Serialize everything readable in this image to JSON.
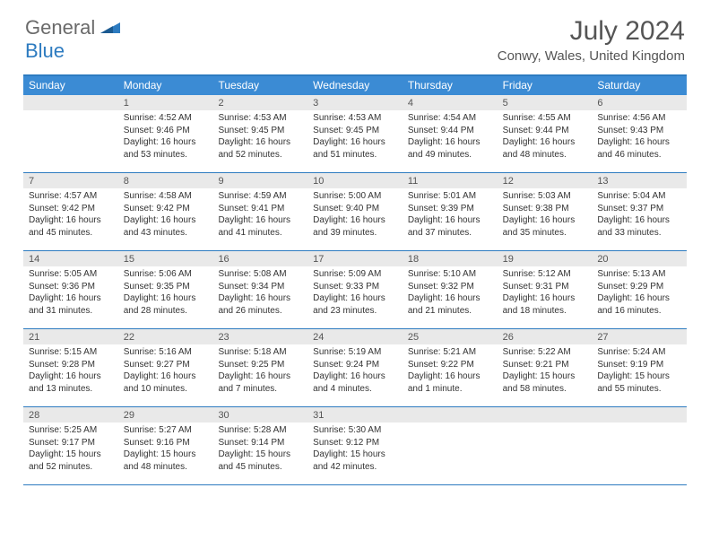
{
  "logo": {
    "part1": "General",
    "part2": "Blue"
  },
  "title": "July 2024",
  "location": "Conwy, Wales, United Kingdom",
  "colors": {
    "header_bar": "#3b8bd4",
    "border": "#2d7bc0",
    "daynum_bg": "#e9e9e9",
    "text": "#333333",
    "logo_gray": "#6a6a6a",
    "logo_blue": "#2d7bc0"
  },
  "weekdays": [
    "Sunday",
    "Monday",
    "Tuesday",
    "Wednesday",
    "Thursday",
    "Friday",
    "Saturday"
  ],
  "weeks": [
    [
      {
        "num": "",
        "sunrise": "",
        "sunset": "",
        "daylight": ""
      },
      {
        "num": "1",
        "sunrise": "Sunrise: 4:52 AM",
        "sunset": "Sunset: 9:46 PM",
        "daylight": "Daylight: 16 hours and 53 minutes."
      },
      {
        "num": "2",
        "sunrise": "Sunrise: 4:53 AM",
        "sunset": "Sunset: 9:45 PM",
        "daylight": "Daylight: 16 hours and 52 minutes."
      },
      {
        "num": "3",
        "sunrise": "Sunrise: 4:53 AM",
        "sunset": "Sunset: 9:45 PM",
        "daylight": "Daylight: 16 hours and 51 minutes."
      },
      {
        "num": "4",
        "sunrise": "Sunrise: 4:54 AM",
        "sunset": "Sunset: 9:44 PM",
        "daylight": "Daylight: 16 hours and 49 minutes."
      },
      {
        "num": "5",
        "sunrise": "Sunrise: 4:55 AM",
        "sunset": "Sunset: 9:44 PM",
        "daylight": "Daylight: 16 hours and 48 minutes."
      },
      {
        "num": "6",
        "sunrise": "Sunrise: 4:56 AM",
        "sunset": "Sunset: 9:43 PM",
        "daylight": "Daylight: 16 hours and 46 minutes."
      }
    ],
    [
      {
        "num": "7",
        "sunrise": "Sunrise: 4:57 AM",
        "sunset": "Sunset: 9:42 PM",
        "daylight": "Daylight: 16 hours and 45 minutes."
      },
      {
        "num": "8",
        "sunrise": "Sunrise: 4:58 AM",
        "sunset": "Sunset: 9:42 PM",
        "daylight": "Daylight: 16 hours and 43 minutes."
      },
      {
        "num": "9",
        "sunrise": "Sunrise: 4:59 AM",
        "sunset": "Sunset: 9:41 PM",
        "daylight": "Daylight: 16 hours and 41 minutes."
      },
      {
        "num": "10",
        "sunrise": "Sunrise: 5:00 AM",
        "sunset": "Sunset: 9:40 PM",
        "daylight": "Daylight: 16 hours and 39 minutes."
      },
      {
        "num": "11",
        "sunrise": "Sunrise: 5:01 AM",
        "sunset": "Sunset: 9:39 PM",
        "daylight": "Daylight: 16 hours and 37 minutes."
      },
      {
        "num": "12",
        "sunrise": "Sunrise: 5:03 AM",
        "sunset": "Sunset: 9:38 PM",
        "daylight": "Daylight: 16 hours and 35 minutes."
      },
      {
        "num": "13",
        "sunrise": "Sunrise: 5:04 AM",
        "sunset": "Sunset: 9:37 PM",
        "daylight": "Daylight: 16 hours and 33 minutes."
      }
    ],
    [
      {
        "num": "14",
        "sunrise": "Sunrise: 5:05 AM",
        "sunset": "Sunset: 9:36 PM",
        "daylight": "Daylight: 16 hours and 31 minutes."
      },
      {
        "num": "15",
        "sunrise": "Sunrise: 5:06 AM",
        "sunset": "Sunset: 9:35 PM",
        "daylight": "Daylight: 16 hours and 28 minutes."
      },
      {
        "num": "16",
        "sunrise": "Sunrise: 5:08 AM",
        "sunset": "Sunset: 9:34 PM",
        "daylight": "Daylight: 16 hours and 26 minutes."
      },
      {
        "num": "17",
        "sunrise": "Sunrise: 5:09 AM",
        "sunset": "Sunset: 9:33 PM",
        "daylight": "Daylight: 16 hours and 23 minutes."
      },
      {
        "num": "18",
        "sunrise": "Sunrise: 5:10 AM",
        "sunset": "Sunset: 9:32 PM",
        "daylight": "Daylight: 16 hours and 21 minutes."
      },
      {
        "num": "19",
        "sunrise": "Sunrise: 5:12 AM",
        "sunset": "Sunset: 9:31 PM",
        "daylight": "Daylight: 16 hours and 18 minutes."
      },
      {
        "num": "20",
        "sunrise": "Sunrise: 5:13 AM",
        "sunset": "Sunset: 9:29 PM",
        "daylight": "Daylight: 16 hours and 16 minutes."
      }
    ],
    [
      {
        "num": "21",
        "sunrise": "Sunrise: 5:15 AM",
        "sunset": "Sunset: 9:28 PM",
        "daylight": "Daylight: 16 hours and 13 minutes."
      },
      {
        "num": "22",
        "sunrise": "Sunrise: 5:16 AM",
        "sunset": "Sunset: 9:27 PM",
        "daylight": "Daylight: 16 hours and 10 minutes."
      },
      {
        "num": "23",
        "sunrise": "Sunrise: 5:18 AM",
        "sunset": "Sunset: 9:25 PM",
        "daylight": "Daylight: 16 hours and 7 minutes."
      },
      {
        "num": "24",
        "sunrise": "Sunrise: 5:19 AM",
        "sunset": "Sunset: 9:24 PM",
        "daylight": "Daylight: 16 hours and 4 minutes."
      },
      {
        "num": "25",
        "sunrise": "Sunrise: 5:21 AM",
        "sunset": "Sunset: 9:22 PM",
        "daylight": "Daylight: 16 hours and 1 minute."
      },
      {
        "num": "26",
        "sunrise": "Sunrise: 5:22 AM",
        "sunset": "Sunset: 9:21 PM",
        "daylight": "Daylight: 15 hours and 58 minutes."
      },
      {
        "num": "27",
        "sunrise": "Sunrise: 5:24 AM",
        "sunset": "Sunset: 9:19 PM",
        "daylight": "Daylight: 15 hours and 55 minutes."
      }
    ],
    [
      {
        "num": "28",
        "sunrise": "Sunrise: 5:25 AM",
        "sunset": "Sunset: 9:17 PM",
        "daylight": "Daylight: 15 hours and 52 minutes."
      },
      {
        "num": "29",
        "sunrise": "Sunrise: 5:27 AM",
        "sunset": "Sunset: 9:16 PM",
        "daylight": "Daylight: 15 hours and 48 minutes."
      },
      {
        "num": "30",
        "sunrise": "Sunrise: 5:28 AM",
        "sunset": "Sunset: 9:14 PM",
        "daylight": "Daylight: 15 hours and 45 minutes."
      },
      {
        "num": "31",
        "sunrise": "Sunrise: 5:30 AM",
        "sunset": "Sunset: 9:12 PM",
        "daylight": "Daylight: 15 hours and 42 minutes."
      },
      {
        "num": "",
        "sunrise": "",
        "sunset": "",
        "daylight": ""
      },
      {
        "num": "",
        "sunrise": "",
        "sunset": "",
        "daylight": ""
      },
      {
        "num": "",
        "sunrise": "",
        "sunset": "",
        "daylight": ""
      }
    ]
  ]
}
